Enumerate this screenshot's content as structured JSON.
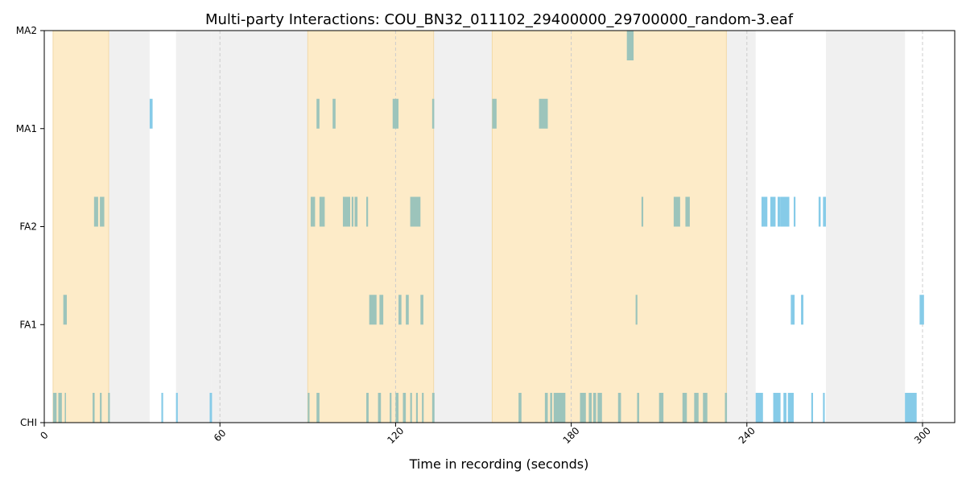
{
  "chart_data": {
    "type": "timeline",
    "title": "Multi-party Interactions: COU_BN32_011102_29400000_29700000_random-3.eaf",
    "xlabel": "Time in recording (seconds)",
    "ylabel": "",
    "xlim": [
      0,
      311
    ],
    "xticks": [
      0,
      60,
      120,
      180,
      240,
      300
    ],
    "xtick_labels": [
      "0",
      "60",
      "120",
      "180",
      "240",
      "300"
    ],
    "tracks": [
      "CHI",
      "FA1",
      "FA2",
      "MA1",
      "MA2"
    ],
    "grid": "x-dashed",
    "colors": {
      "interaction_window": "#fdebc8",
      "gap_region": "#ebebeb",
      "speech_in_window": "#9cc4bb",
      "speech_outside": "#86cbe8"
    },
    "interaction_windows": [
      [
        3,
        22
      ],
      [
        90,
        133
      ],
      [
        153,
        233
      ]
    ],
    "gap_regions": [
      [
        22,
        36
      ],
      [
        45,
        57
      ],
      [
        57,
        90
      ],
      [
        133,
        153
      ],
      [
        233,
        243
      ],
      [
        267,
        294
      ]
    ],
    "segments": {
      "CHI": [
        [
          3,
          4.2
        ],
        [
          4.8,
          6
        ],
        [
          7,
          7.4
        ],
        [
          16.5,
          17.2
        ],
        [
          19,
          19.6
        ],
        [
          21.8,
          22.4
        ],
        [
          40,
          40.6
        ],
        [
          45,
          45.6
        ],
        [
          56.5,
          57.3
        ],
        [
          90,
          90.6
        ],
        [
          93,
          94
        ],
        [
          110,
          110.8
        ],
        [
          114,
          115
        ],
        [
          118,
          118.6
        ],
        [
          120,
          121
        ],
        [
          122.5,
          123.5
        ],
        [
          125,
          125.6
        ],
        [
          127,
          127.6
        ],
        [
          129,
          129.6
        ],
        [
          132.5,
          133.3
        ],
        [
          162,
          163
        ],
        [
          171,
          172
        ],
        [
          172.8,
          173.5
        ],
        [
          174,
          178
        ],
        [
          183,
          185
        ],
        [
          186,
          187
        ],
        [
          187.5,
          188.5
        ],
        [
          189,
          190.5
        ],
        [
          196,
          197
        ],
        [
          202.5,
          203.2
        ],
        [
          210,
          211.5
        ],
        [
          218,
          219.5
        ],
        [
          222,
          223.5
        ],
        [
          225,
          226.5
        ],
        [
          232.5,
          233.2
        ],
        [
          243,
          245.5
        ],
        [
          249,
          251.5
        ],
        [
          252.5,
          253.5
        ],
        [
          254,
          256
        ],
        [
          262,
          262.6
        ],
        [
          266,
          266.6
        ],
        [
          294,
          298
        ]
      ],
      "FA1": [
        [
          6.5,
          7.7
        ],
        [
          111,
          113.5
        ],
        [
          114.5,
          115.8
        ],
        [
          121,
          122
        ],
        [
          123.5,
          124.5
        ],
        [
          128.5,
          129.5
        ],
        [
          202,
          202.6
        ],
        [
          255,
          256.3
        ],
        [
          258.5,
          259.3
        ],
        [
          299,
          300.5
        ]
      ],
      "FA2": [
        [
          17,
          18.4
        ],
        [
          19,
          20.5
        ],
        [
          91,
          92.5
        ],
        [
          94,
          95.8
        ],
        [
          102,
          104.5
        ],
        [
          105,
          105.6
        ],
        [
          106,
          107
        ],
        [
          110,
          110.6
        ],
        [
          125,
          128.5
        ],
        [
          204,
          204.6
        ],
        [
          215,
          217.2
        ],
        [
          219,
          220.5
        ],
        [
          245,
          247
        ],
        [
          248,
          249.8
        ],
        [
          250.5,
          251.5
        ],
        [
          251.5,
          254.5
        ],
        [
          256,
          256.6
        ],
        [
          264.5,
          265.2
        ],
        [
          266,
          267
        ]
      ],
      "MA1": [
        [
          36,
          37
        ],
        [
          93,
          94
        ],
        [
          98.5,
          99.5
        ],
        [
          119,
          121
        ],
        [
          132.5,
          133.2
        ],
        [
          153,
          154.5
        ],
        [
          169,
          172
        ]
      ],
      "MA2": [
        [
          199,
          201.3
        ]
      ]
    }
  }
}
